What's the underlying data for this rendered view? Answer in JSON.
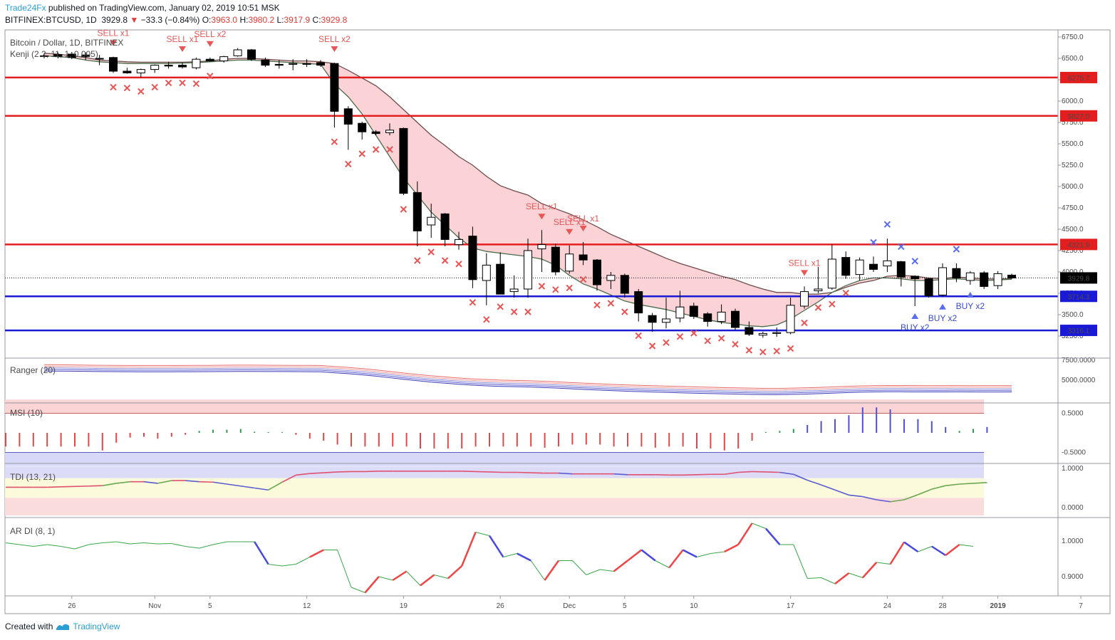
{
  "header": {
    "publisher": "Trade24Fx",
    "published_text": " published on TradingView.com, January 02, 2019 10:51 MSK",
    "symbol": "BITFINEX:BTCUSD, 1D",
    "last": "3929.8",
    "change": "−33.3 (−0.84%)",
    "o_label": "O:",
    "o": "3963.0",
    "h_label": "H:",
    "h": "3980.2",
    "l_label": "L:",
    "l": "3917.9",
    "c_label": "C:",
    "c": "3929.8"
  },
  "footer": {
    "created_with": "Created with",
    "brand": "TradingView"
  },
  "panes": {
    "main_title": "Bitcoin / Dollar, 1D, BITFINEX",
    "main_subtitle": "Kenji (2.2, 11, 1, 0.005)",
    "ranger_title": "Ranger (20)",
    "msi_title": "MSI (10)",
    "tdi_title": "TDI (13, 21)",
    "ardi_title": "AR DI (8, 1)"
  },
  "colors": {
    "up_body": "#ffffff",
    "down_body": "#000000",
    "red_line": "#e31e1e",
    "blue_line": "#1a1ad6",
    "cloud": "#fbd3d6",
    "sell": "#e85555",
    "buy": "#5a6cf0",
    "label_red": "#e31e1e",
    "label_blue": "#1a1ad6",
    "label_dark": "#131722"
  },
  "chart_data": [
    {
      "type": "candlestick",
      "title": "Bitcoin / Dollar, 1D, BITFINEX",
      "y_axis_ticks": [
        "6750.0",
        "6500.0",
        "6250.0",
        "6000.0",
        "5750.0",
        "5500.0",
        "5250.0",
        "5000.0",
        "4750.0",
        "4500.0",
        "4250.0",
        "4000.0",
        "3750.0",
        "3500.0",
        "3250.0"
      ],
      "x_axis_ticks": [
        {
          "label": "26",
          "index": 2
        },
        {
          "label": "Nov",
          "index": 8
        },
        {
          "label": "5",
          "index": 12
        },
        {
          "label": "12",
          "index": 19
        },
        {
          "label": "19",
          "index": 26
        },
        {
          "label": "26",
          "index": 33
        },
        {
          "label": "Dec",
          "index": 38
        },
        {
          "label": "5",
          "index": 42
        },
        {
          "label": "10",
          "index": 47
        },
        {
          "label": "17",
          "index": 54
        },
        {
          "label": "24",
          "index": 61
        },
        {
          "label": "28",
          "index": 65
        },
        {
          "label": "2019",
          "index": 69
        },
        {
          "label": "7",
          "index": 75
        }
      ],
      "horizontal_levels": [
        {
          "value": 6275.7,
          "label": "6275.7",
          "color": "red"
        },
        {
          "value": 5827.0,
          "label": "5827.0",
          "color": "red"
        },
        {
          "value": 4321.9,
          "label": "4321.9",
          "color": "red"
        },
        {
          "value": 3714.3,
          "label": "3714.3",
          "color": "blue"
        },
        {
          "value": 3316.1,
          "label": "3316.1",
          "color": "blue"
        }
      ],
      "last_price": {
        "value": 3929.8,
        "label": "3929.8"
      },
      "candles": [
        {
          "o": 6530,
          "h": 6560,
          "l": 6500,
          "c": 6530
        },
        {
          "o": 6545,
          "h": 6570,
          "l": 6500,
          "c": 6520
        },
        {
          "o": 6550,
          "h": 6575,
          "l": 6490,
          "c": 6510
        },
        {
          "o": 6540,
          "h": 6570,
          "l": 6480,
          "c": 6520
        },
        {
          "o": 6500,
          "h": 6540,
          "l": 6420,
          "c": 6500
        },
        {
          "o": 6510,
          "h": 6520,
          "l": 6330,
          "c": 6350
        },
        {
          "o": 6350,
          "h": 6390,
          "l": 6320,
          "c": 6330
        },
        {
          "o": 6330,
          "h": 6380,
          "l": 6280,
          "c": 6370
        },
        {
          "o": 6370,
          "h": 6430,
          "l": 6330,
          "c": 6420
        },
        {
          "o": 6420,
          "h": 6460,
          "l": 6380,
          "c": 6410
        },
        {
          "o": 6420,
          "h": 6450,
          "l": 6380,
          "c": 6400
        },
        {
          "o": 6390,
          "h": 6510,
          "l": 6370,
          "c": 6490
        },
        {
          "o": 6490,
          "h": 6510,
          "l": 6460,
          "c": 6470
        },
        {
          "o": 6470,
          "h": 6530,
          "l": 6450,
          "c": 6520
        },
        {
          "o": 6530,
          "h": 6620,
          "l": 6520,
          "c": 6600
        },
        {
          "o": 6600,
          "h": 6610,
          "l": 6470,
          "c": 6490
        },
        {
          "o": 6480,
          "h": 6510,
          "l": 6400,
          "c": 6420
        },
        {
          "o": 6430,
          "h": 6480,
          "l": 6380,
          "c": 6420
        },
        {
          "o": 6430,
          "h": 6490,
          "l": 6360,
          "c": 6440
        },
        {
          "o": 6440,
          "h": 6490,
          "l": 6400,
          "c": 6430
        },
        {
          "o": 6450,
          "h": 6480,
          "l": 6400,
          "c": 6420
        },
        {
          "o": 6440,
          "h": 6450,
          "l": 5690,
          "c": 5880
        },
        {
          "o": 5910,
          "h": 5940,
          "l": 5430,
          "c": 5730
        },
        {
          "o": 5740,
          "h": 5760,
          "l": 5550,
          "c": 5640
        },
        {
          "o": 5640,
          "h": 5660,
          "l": 5600,
          "c": 5620
        },
        {
          "o": 5630,
          "h": 5740,
          "l": 5600,
          "c": 5660
        },
        {
          "o": 5680,
          "h": 5690,
          "l": 4900,
          "c": 4920
        },
        {
          "o": 4930,
          "h": 5060,
          "l": 4300,
          "c": 4480
        },
        {
          "o": 4550,
          "h": 4800,
          "l": 4400,
          "c": 4640
        },
        {
          "o": 4680,
          "h": 4690,
          "l": 4300,
          "c": 4380
        },
        {
          "o": 4320,
          "h": 4470,
          "l": 4260,
          "c": 4380
        },
        {
          "o": 4420,
          "h": 4530,
          "l": 3810,
          "c": 3910
        },
        {
          "o": 3900,
          "h": 4220,
          "l": 3610,
          "c": 4080
        },
        {
          "o": 4090,
          "h": 4230,
          "l": 3760,
          "c": 3740
        },
        {
          "o": 3770,
          "h": 3960,
          "l": 3700,
          "c": 3800
        },
        {
          "o": 3800,
          "h": 4390,
          "l": 3700,
          "c": 4250
        },
        {
          "o": 4270,
          "h": 4490,
          "l": 4000,
          "c": 4320
        },
        {
          "o": 4290,
          "h": 4330,
          "l": 3960,
          "c": 4000
        },
        {
          "o": 4010,
          "h": 4310,
          "l": 3980,
          "c": 4210
        },
        {
          "o": 4200,
          "h": 4350,
          "l": 4080,
          "c": 4140
        },
        {
          "o": 4140,
          "h": 4150,
          "l": 3780,
          "c": 3850
        },
        {
          "o": 3900,
          "h": 4000,
          "l": 3800,
          "c": 3960
        },
        {
          "o": 3960,
          "h": 3980,
          "l": 3700,
          "c": 3750
        },
        {
          "o": 3770,
          "h": 3800,
          "l": 3420,
          "c": 3520
        },
        {
          "o": 3490,
          "h": 3520,
          "l": 3300,
          "c": 3410
        },
        {
          "o": 3410,
          "h": 3700,
          "l": 3340,
          "c": 3450
        },
        {
          "o": 3460,
          "h": 3780,
          "l": 3410,
          "c": 3590
        },
        {
          "o": 3600,
          "h": 3640,
          "l": 3450,
          "c": 3480
        },
        {
          "o": 3510,
          "h": 3530,
          "l": 3360,
          "c": 3420
        },
        {
          "o": 3420,
          "h": 3620,
          "l": 3390,
          "c": 3530
        },
        {
          "o": 3540,
          "h": 3570,
          "l": 3320,
          "c": 3350
        },
        {
          "o": 3350,
          "h": 3420,
          "l": 3250,
          "c": 3270
        },
        {
          "o": 3260,
          "h": 3300,
          "l": 3230,
          "c": 3280
        },
        {
          "o": 3280,
          "h": 3350,
          "l": 3240,
          "c": 3290
        },
        {
          "o": 3290,
          "h": 3700,
          "l": 3270,
          "c": 3610
        },
        {
          "o": 3600,
          "h": 3830,
          "l": 3570,
          "c": 3770
        },
        {
          "o": 3780,
          "h": 4060,
          "l": 3750,
          "c": 3800
        },
        {
          "o": 3810,
          "h": 4320,
          "l": 3790,
          "c": 4150
        },
        {
          "o": 4170,
          "h": 4240,
          "l": 3920,
          "c": 3960
        },
        {
          "o": 3970,
          "h": 4170,
          "l": 3900,
          "c": 4140
        },
        {
          "o": 4090,
          "h": 4180,
          "l": 4000,
          "c": 4030
        },
        {
          "o": 4070,
          "h": 4390,
          "l": 4000,
          "c": 4130
        },
        {
          "o": 4120,
          "h": 4130,
          "l": 3830,
          "c": 3940
        },
        {
          "o": 3950,
          "h": 3960,
          "l": 3600,
          "c": 3920
        },
        {
          "o": 3920,
          "h": 3930,
          "l": 3700,
          "c": 3720
        },
        {
          "o": 3730,
          "h": 4100,
          "l": 3710,
          "c": 4050
        },
        {
          "o": 4040,
          "h": 4100,
          "l": 3880,
          "c": 3930
        },
        {
          "o": 3900,
          "h": 4010,
          "l": 3850,
          "c": 3990
        },
        {
          "o": 3990,
          "h": 4010,
          "l": 3800,
          "c": 3830
        },
        {
          "o": 3840,
          "h": 4010,
          "l": 3800,
          "c": 3980
        },
        {
          "o": 3963,
          "h": 3980.2,
          "l": 3917.9,
          "c": 3929.8
        }
      ],
      "kenji_upper": [
        6560,
        6550,
        6530,
        6510,
        6480,
        6470,
        6460,
        6455,
        6455,
        6455,
        6455,
        6460,
        6470,
        6490,
        6500,
        6500,
        6490,
        6480,
        6470,
        6470,
        6460,
        6440,
        6360,
        6270,
        6180,
        6050,
        5900,
        5750,
        5600,
        5480,
        5350,
        5250,
        5120,
        5010,
        4950,
        4900,
        4800,
        4740,
        4680,
        4610,
        4530,
        4440,
        4370,
        4300,
        4230,
        4160,
        4100,
        4050,
        4000,
        3950,
        3910,
        3850,
        3800,
        3760,
        3760,
        3740,
        3740,
        3760,
        3820,
        3870,
        3900,
        3950,
        3960,
        3950,
        3930,
        3920,
        3940,
        3930,
        3920,
        3915,
        3925
      ],
      "kenji_lower": [
        6530,
        6520,
        6510,
        6480,
        6460,
        6450,
        6440,
        6440,
        6440,
        6440,
        6445,
        6450,
        6460,
        6470,
        6480,
        6480,
        6470,
        6460,
        6450,
        6440,
        6430,
        6200,
        6050,
        5850,
        5600,
        5350,
        5100,
        4900,
        4700,
        4550,
        4400,
        4280,
        4240,
        4220,
        4200,
        4180,
        4150,
        4080,
        3960,
        3860,
        3800,
        3730,
        3660,
        3620,
        3590,
        3560,
        3520,
        3480,
        3440,
        3410,
        3390,
        3370,
        3360,
        3380,
        3450,
        3550,
        3650,
        3760,
        3840,
        3900,
        3930,
        3930,
        3920,
        3900,
        3900,
        3910,
        3920,
        3910,
        3900,
        3905,
        3915
      ],
      "signals": [
        {
          "kind": "sell_label",
          "index": 5,
          "text": "SELL x1"
        },
        {
          "kind": "sell_label",
          "index": 10,
          "text": "SELL x1"
        },
        {
          "kind": "sell_label",
          "index": 12,
          "text": "SELL x2"
        },
        {
          "kind": "sell_label",
          "index": 21,
          "text": "SELL x2"
        },
        {
          "kind": "sell_label",
          "index": 36,
          "text": "SELL x1"
        },
        {
          "kind": "sell_label",
          "index": 38,
          "text": "SELL x1"
        },
        {
          "kind": "sell_label",
          "index": 39,
          "text": "SELL x1"
        },
        {
          "kind": "sell_label",
          "index": 55,
          "text": "SELL x1"
        },
        {
          "kind": "buy_label",
          "index": 63,
          "text": "BUY x2"
        },
        {
          "kind": "buy_label",
          "index": 65,
          "text": "BUY x2"
        },
        {
          "kind": "buy_label",
          "index": 67,
          "text": "BUY x2"
        }
      ],
      "sell_x_marks": [
        5,
        6,
        7,
        8,
        9,
        10,
        11,
        12,
        21,
        22,
        23,
        24,
        25,
        26,
        27,
        28,
        29,
        30,
        31,
        32,
        33,
        34,
        35,
        36,
        37,
        38,
        39,
        40,
        41,
        42,
        43,
        44,
        45,
        46,
        47,
        48,
        49,
        50,
        51,
        52,
        53,
        54,
        55,
        56,
        57,
        58
      ],
      "buy_x_marks": [
        60,
        61,
        62,
        63,
        66
      ]
    },
    {
      "type": "line",
      "title": "Ranger (20)",
      "y_axis_ticks": [
        "7500.0000",
        "5000.0000"
      ]
    },
    {
      "type": "bar",
      "title": "MSI (10)",
      "y_axis_ticks": [
        "0.5000",
        "-0.5000"
      ],
      "values": [
        -0.35,
        -0.35,
        -0.35,
        -0.35,
        -0.35,
        -0.35,
        -0.35,
        -0.45,
        -0.25,
        -0.12,
        -0.1,
        -0.15,
        -0.1,
        -0.05,
        0.05,
        0.08,
        0.08,
        0.1,
        0.03,
        0.02,
        0.02,
        -0.05,
        -0.15,
        -0.2,
        -0.3,
        -0.35,
        -0.35,
        -0.35,
        -0.35,
        -0.35,
        -0.4,
        -0.4,
        -0.4,
        -0.4,
        -0.35,
        -0.35,
        -0.35,
        -0.35,
        -0.35,
        -0.38,
        -0.35,
        -0.3,
        -0.3,
        -0.3,
        -0.35,
        -0.35,
        -0.35,
        -0.38,
        -0.35,
        -0.35,
        -0.4,
        -0.4,
        -0.45,
        -0.4,
        -0.2,
        0.02,
        0.05,
        0.1,
        0.2,
        0.3,
        0.35,
        0.45,
        0.65,
        0.65,
        0.6,
        0.35,
        0.35,
        0.3,
        0.15,
        0.05,
        0.1,
        0.15
      ],
      "fill_bands": [
        {
          "from": 0.5,
          "to": 0.85,
          "color": "#fbd5d5"
        },
        {
          "from": -0.85,
          "to": -0.5,
          "color": "#d7d7f7"
        }
      ]
    },
    {
      "type": "line",
      "title": "TDI (13, 21)",
      "y_axis_ticks": [
        "1.0000",
        "0.0000"
      ],
      "values": [
        0.52,
        0.52,
        0.52,
        0.52,
        0.53,
        0.54,
        0.55,
        0.56,
        0.62,
        0.66,
        0.66,
        0.62,
        0.69,
        0.69,
        0.66,
        0.65,
        0.6,
        0.55,
        0.5,
        0.45,
        0.65,
        0.83,
        0.87,
        0.89,
        0.91,
        0.92,
        0.92,
        0.93,
        0.93,
        0.93,
        0.93,
        0.93,
        0.93,
        0.93,
        0.92,
        0.91,
        0.9,
        0.9,
        0.89,
        0.88,
        0.88,
        0.86,
        0.86,
        0.86,
        0.86,
        0.84,
        0.84,
        0.84,
        0.83,
        0.83,
        0.84,
        0.85,
        0.85,
        0.9,
        0.92,
        0.91,
        0.9,
        0.85,
        0.7,
        0.58,
        0.45,
        0.32,
        0.28,
        0.2,
        0.15,
        0.2,
        0.33,
        0.47,
        0.56,
        0.6,
        0.62,
        0.64
      ]
    },
    {
      "type": "line",
      "title": "AR DI (8, 1)",
      "y_axis_ticks": [
        "1.0000",
        "0.9000"
      ],
      "values": [
        0.995,
        0.99,
        0.985,
        0.99,
        0.985,
        0.978,
        0.99,
        0.995,
        0.998,
        0.992,
        0.995,
        0.992,
        0.993,
        0.985,
        0.98,
        0.99,
        0.998,
        0.998,
        0.998,
        0.935,
        0.93,
        0.935,
        0.955,
        0.975,
        0.975,
        0.87,
        0.855,
        0.9,
        0.89,
        0.915,
        0.875,
        0.905,
        0.895,
        0.93,
        1.025,
        1.015,
        0.955,
        0.965,
        0.945,
        0.89,
        0.945,
        0.945,
        0.905,
        0.92,
        0.915,
        0.945,
        0.975,
        0.945,
        0.925,
        0.975,
        0.955,
        0.965,
        0.97,
        0.99,
        1.05,
        1.035,
        0.99,
        0.99,
        0.895,
        0.897,
        0.88,
        0.91,
        0.897,
        0.94,
        0.935,
        0.997,
        0.97,
        0.985,
        0.96,
        0.99,
        0.985
      ]
    }
  ]
}
